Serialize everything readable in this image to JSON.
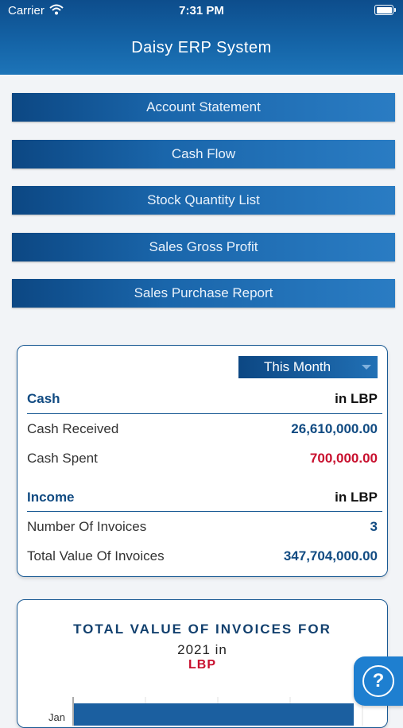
{
  "status_bar": {
    "carrier": "Carrier",
    "time": "7:31 PM"
  },
  "app": {
    "title": "Daisy ERP System"
  },
  "menu": [
    {
      "label": "Account Statement"
    },
    {
      "label": "Cash Flow"
    },
    {
      "label": "Stock Quantity List"
    },
    {
      "label": "Sales Gross Profit"
    },
    {
      "label": "Sales Purchase Report"
    }
  ],
  "summary": {
    "period": "This Month",
    "cash": {
      "title": "Cash",
      "unit": "in LBP",
      "rows": [
        {
          "label": "Cash Received",
          "value": "26,610,000.00",
          "color": "#114b82"
        },
        {
          "label": "Cash Spent",
          "value": "700,000.00",
          "color": "#c8102e"
        }
      ]
    },
    "income": {
      "title": "Income",
      "unit": "in LBP",
      "rows": [
        {
          "label": "Number Of Invoices",
          "value": "3"
        },
        {
          "label": "Total Value Of Invoices",
          "value": "347,704,000.00"
        }
      ]
    }
  },
  "chart": {
    "title": "TOTAL VALUE OF INVOICES FOR",
    "subtitle": "2021 in",
    "currency": "LBP",
    "first_category": "Jan"
  },
  "help": {
    "symbol": "?"
  }
}
